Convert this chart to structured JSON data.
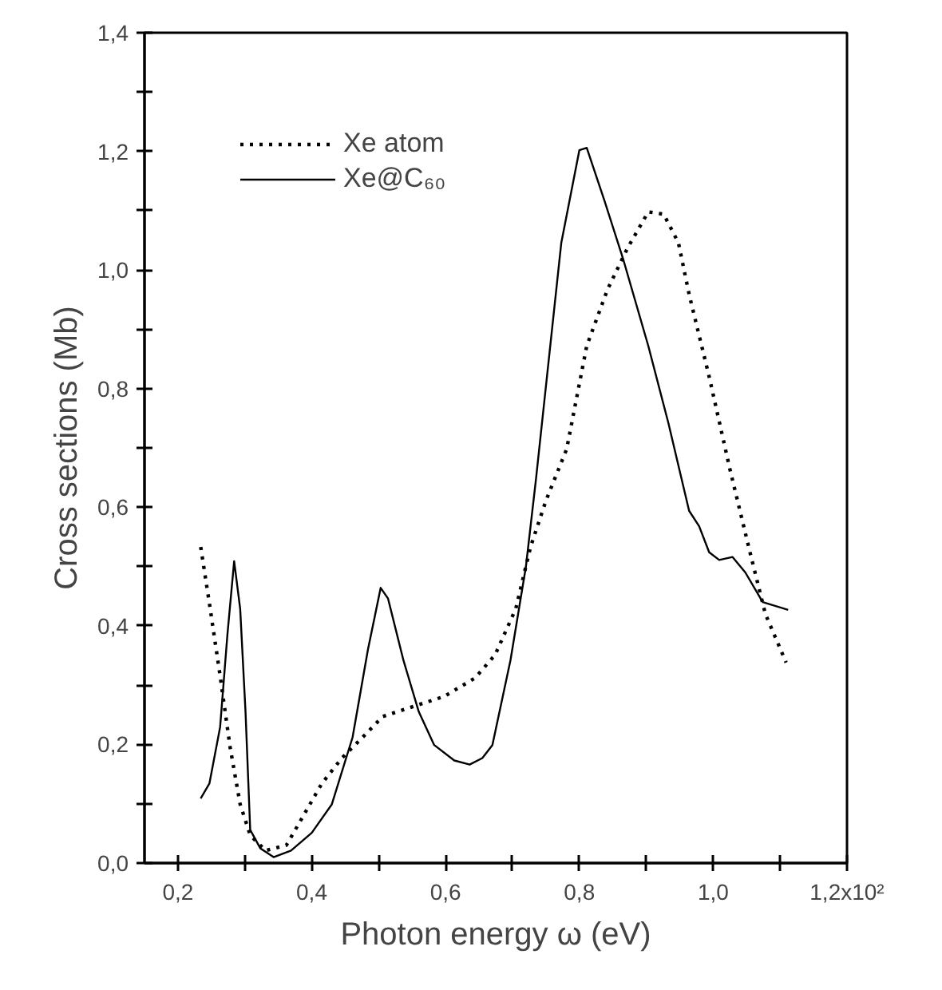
{
  "chart_data": {
    "type": "line",
    "xlabel": "Photon energy ω (eV)",
    "ylabel": "Cross sections (Mb)",
    "xlim": [
      0.15,
      1.2
    ],
    "ylim": [
      0.0,
      1.4
    ],
    "xticks": [
      {
        "value": 0.2,
        "label": "0,2"
      },
      {
        "value": 0.3,
        "label": null
      },
      {
        "value": 0.4,
        "label": "0,4"
      },
      {
        "value": 0.5,
        "label": null
      },
      {
        "value": 0.6,
        "label": "0,6"
      },
      {
        "value": 0.7,
        "label": null
      },
      {
        "value": 0.8,
        "label": "0,8"
      },
      {
        "value": 0.9,
        "label": null
      },
      {
        "value": 1.0,
        "label": "1,0"
      },
      {
        "value": 1.1,
        "label": null
      },
      {
        "value": 1.2,
        "label": "1,2x10²"
      }
    ],
    "yticks": [
      {
        "value": 0.0,
        "label": "0,0"
      },
      {
        "value": 0.1,
        "label": null
      },
      {
        "value": 0.2,
        "label": "0,2"
      },
      {
        "value": 0.3,
        "label": null
      },
      {
        "value": 0.4,
        "label": "0,4"
      },
      {
        "value": 0.5,
        "label": null
      },
      {
        "value": 0.6,
        "label": "0,6"
      },
      {
        "value": 0.7,
        "label": null
      },
      {
        "value": 0.8,
        "label": "0,8"
      },
      {
        "value": 0.9,
        "label": null
      },
      {
        "value": 1.0,
        "label": "1,0"
      },
      {
        "value": 1.1,
        "label": null
      },
      {
        "value": 1.2,
        "label": "1,2"
      },
      {
        "value": 1.3,
        "label": null
      },
      {
        "value": 1.4,
        "label": "1,4"
      }
    ],
    "grid": false,
    "legend": "top left",
    "marker": "none",
    "series": [
      {
        "name": "Xe atom",
        "color": "#000000",
        "line_style": "dotted",
        "x": [
          0.234,
          0.247,
          0.263,
          0.278,
          0.293,
          0.308,
          0.331,
          0.362,
          0.384,
          0.415,
          0.445,
          0.476,
          0.506,
          0.552,
          0.598,
          0.644,
          0.674,
          0.705,
          0.727,
          0.75,
          0.781,
          0.811,
          0.842,
          0.872,
          0.903,
          0.926,
          0.948,
          0.964,
          0.994,
          1.025,
          1.055,
          1.078,
          1.109
        ],
        "values": [
          0.533,
          0.438,
          0.316,
          0.195,
          0.099,
          0.047,
          0.021,
          0.03,
          0.073,
          0.134,
          0.177,
          0.212,
          0.247,
          0.264,
          0.281,
          0.312,
          0.351,
          0.429,
          0.533,
          0.611,
          0.698,
          0.872,
          0.967,
          1.037,
          1.098,
          1.094,
          1.046,
          0.959,
          0.82,
          0.664,
          0.524,
          0.42,
          0.338
        ]
      },
      {
        "name": "Xe@C₆₀",
        "color": "#000000",
        "line_style": "solid",
        "x": [
          0.234,
          0.247,
          0.263,
          0.274,
          0.284,
          0.293,
          0.301,
          0.308,
          0.323,
          0.343,
          0.369,
          0.4,
          0.43,
          0.461,
          0.484,
          0.503,
          0.514,
          0.537,
          0.56,
          0.583,
          0.613,
          0.636,
          0.655,
          0.67,
          0.697,
          0.72,
          0.735,
          0.773,
          0.8,
          0.811,
          0.838,
          0.865,
          0.903,
          0.933,
          0.964,
          0.979,
          0.994,
          1.009,
          1.029,
          1.048,
          1.074,
          1.112
        ],
        "values": [
          0.109,
          0.134,
          0.229,
          0.386,
          0.509,
          0.429,
          0.255,
          0.056,
          0.025,
          0.01,
          0.021,
          0.051,
          0.099,
          0.212,
          0.36,
          0.464,
          0.446,
          0.342,
          0.255,
          0.199,
          0.173,
          0.166,
          0.177,
          0.199,
          0.342,
          0.499,
          0.646,
          1.046,
          1.202,
          1.206,
          1.115,
          1.02,
          0.872,
          0.742,
          0.594,
          0.568,
          0.524,
          0.511,
          0.516,
          0.49,
          0.44,
          0.427
        ]
      }
    ]
  }
}
